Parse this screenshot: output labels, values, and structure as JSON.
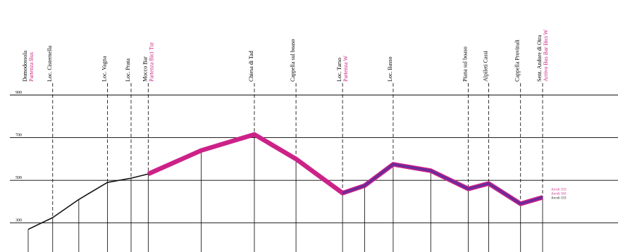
{
  "chart_data": {
    "type": "line",
    "title": "",
    "xlabel": "",
    "ylabel": "",
    "ylim": [
      200,
      900
    ],
    "y_ticks": [
      {
        "value": 300,
        "label": "300"
      },
      {
        "value": 500,
        "label": "500"
      },
      {
        "value": 700,
        "label": "700"
      },
      {
        "value": 900,
        "label": "900"
      }
    ],
    "grid": "horizontal lines at 300, 500, 700, 900",
    "waypoints": [
      {
        "name": "Domodossola",
        "sub": "Partenza Bus",
        "x": 0,
        "y": 270,
        "tall": false
      },
      {
        "name": "Loc. Cisternella",
        "sub": "",
        "x": 3,
        "y": 325,
        "tall": true
      },
      {
        "name": "",
        "sub": "",
        "x": 6.2,
        "y": 410,
        "tall": false
      },
      {
        "name": "Loc. Vagna",
        "sub": "",
        "x": 9.7,
        "y": 490,
        "tall": true
      },
      {
        "name": "Loc. Prata",
        "sub": "",
        "x": 12.6,
        "y": 510,
        "tall": true
      },
      {
        "name": "Mocco Bar",
        "sub": "Partenza Bici Tur",
        "x": 14.7,
        "y": 530,
        "tall": true
      },
      {
        "name": "",
        "sub": "",
        "x": 21.2,
        "y": 640,
        "tall": false
      },
      {
        "name": "Chiesa di Tad",
        "sub": "",
        "x": 27.7,
        "y": 715,
        "tall": true
      },
      {
        "name": "Cappella sul boaso",
        "sub": "",
        "x": 32.8,
        "y": 600,
        "tall": true
      },
      {
        "name": "Loc. Tarso",
        "sub": "Partenza W",
        "x": 38.5,
        "y": 440,
        "tall": true
      },
      {
        "name": "",
        "sub": "",
        "x": 41.2,
        "y": 475,
        "tall": false
      },
      {
        "name": "Loc. Basso",
        "sub": "",
        "x": 44.7,
        "y": 575,
        "tall": true
      },
      {
        "name": "",
        "sub": "",
        "x": 49.3,
        "y": 545,
        "tall": false
      },
      {
        "name": "Piana sul boaso",
        "sub": "",
        "x": 53.9,
        "y": 460,
        "tall": true
      },
      {
        "name": "Alpileti Cassi",
        "sub": "",
        "x": 56.4,
        "y": 485,
        "tall": true
      },
      {
        "name": "Cappella Provinali",
        "sub": "",
        "x": 60.3,
        "y": 390,
        "tall": true
      },
      {
        "name": "Sent. Andore di Oira",
        "sub": "Arrivo Bus Bar Bici W",
        "x": 63,
        "y": 420,
        "tall": true
      }
    ],
    "series": [
      {
        "start_index": 0,
        "color": "#111111"
      },
      {
        "start_index": 5,
        "color": "#cc2288"
      },
      {
        "start_index": 9,
        "color": "#6a2a9a"
      }
    ],
    "route_labels": [
      {
        "text": "Arcoli 333",
        "color": "#cc2288"
      },
      {
        "text": "Arcoli 303",
        "color": "#cc2288"
      },
      {
        "text": "Arcoli 333",
        "color": "#111111"
      }
    ],
    "sub_label_color": "#cc2288"
  }
}
